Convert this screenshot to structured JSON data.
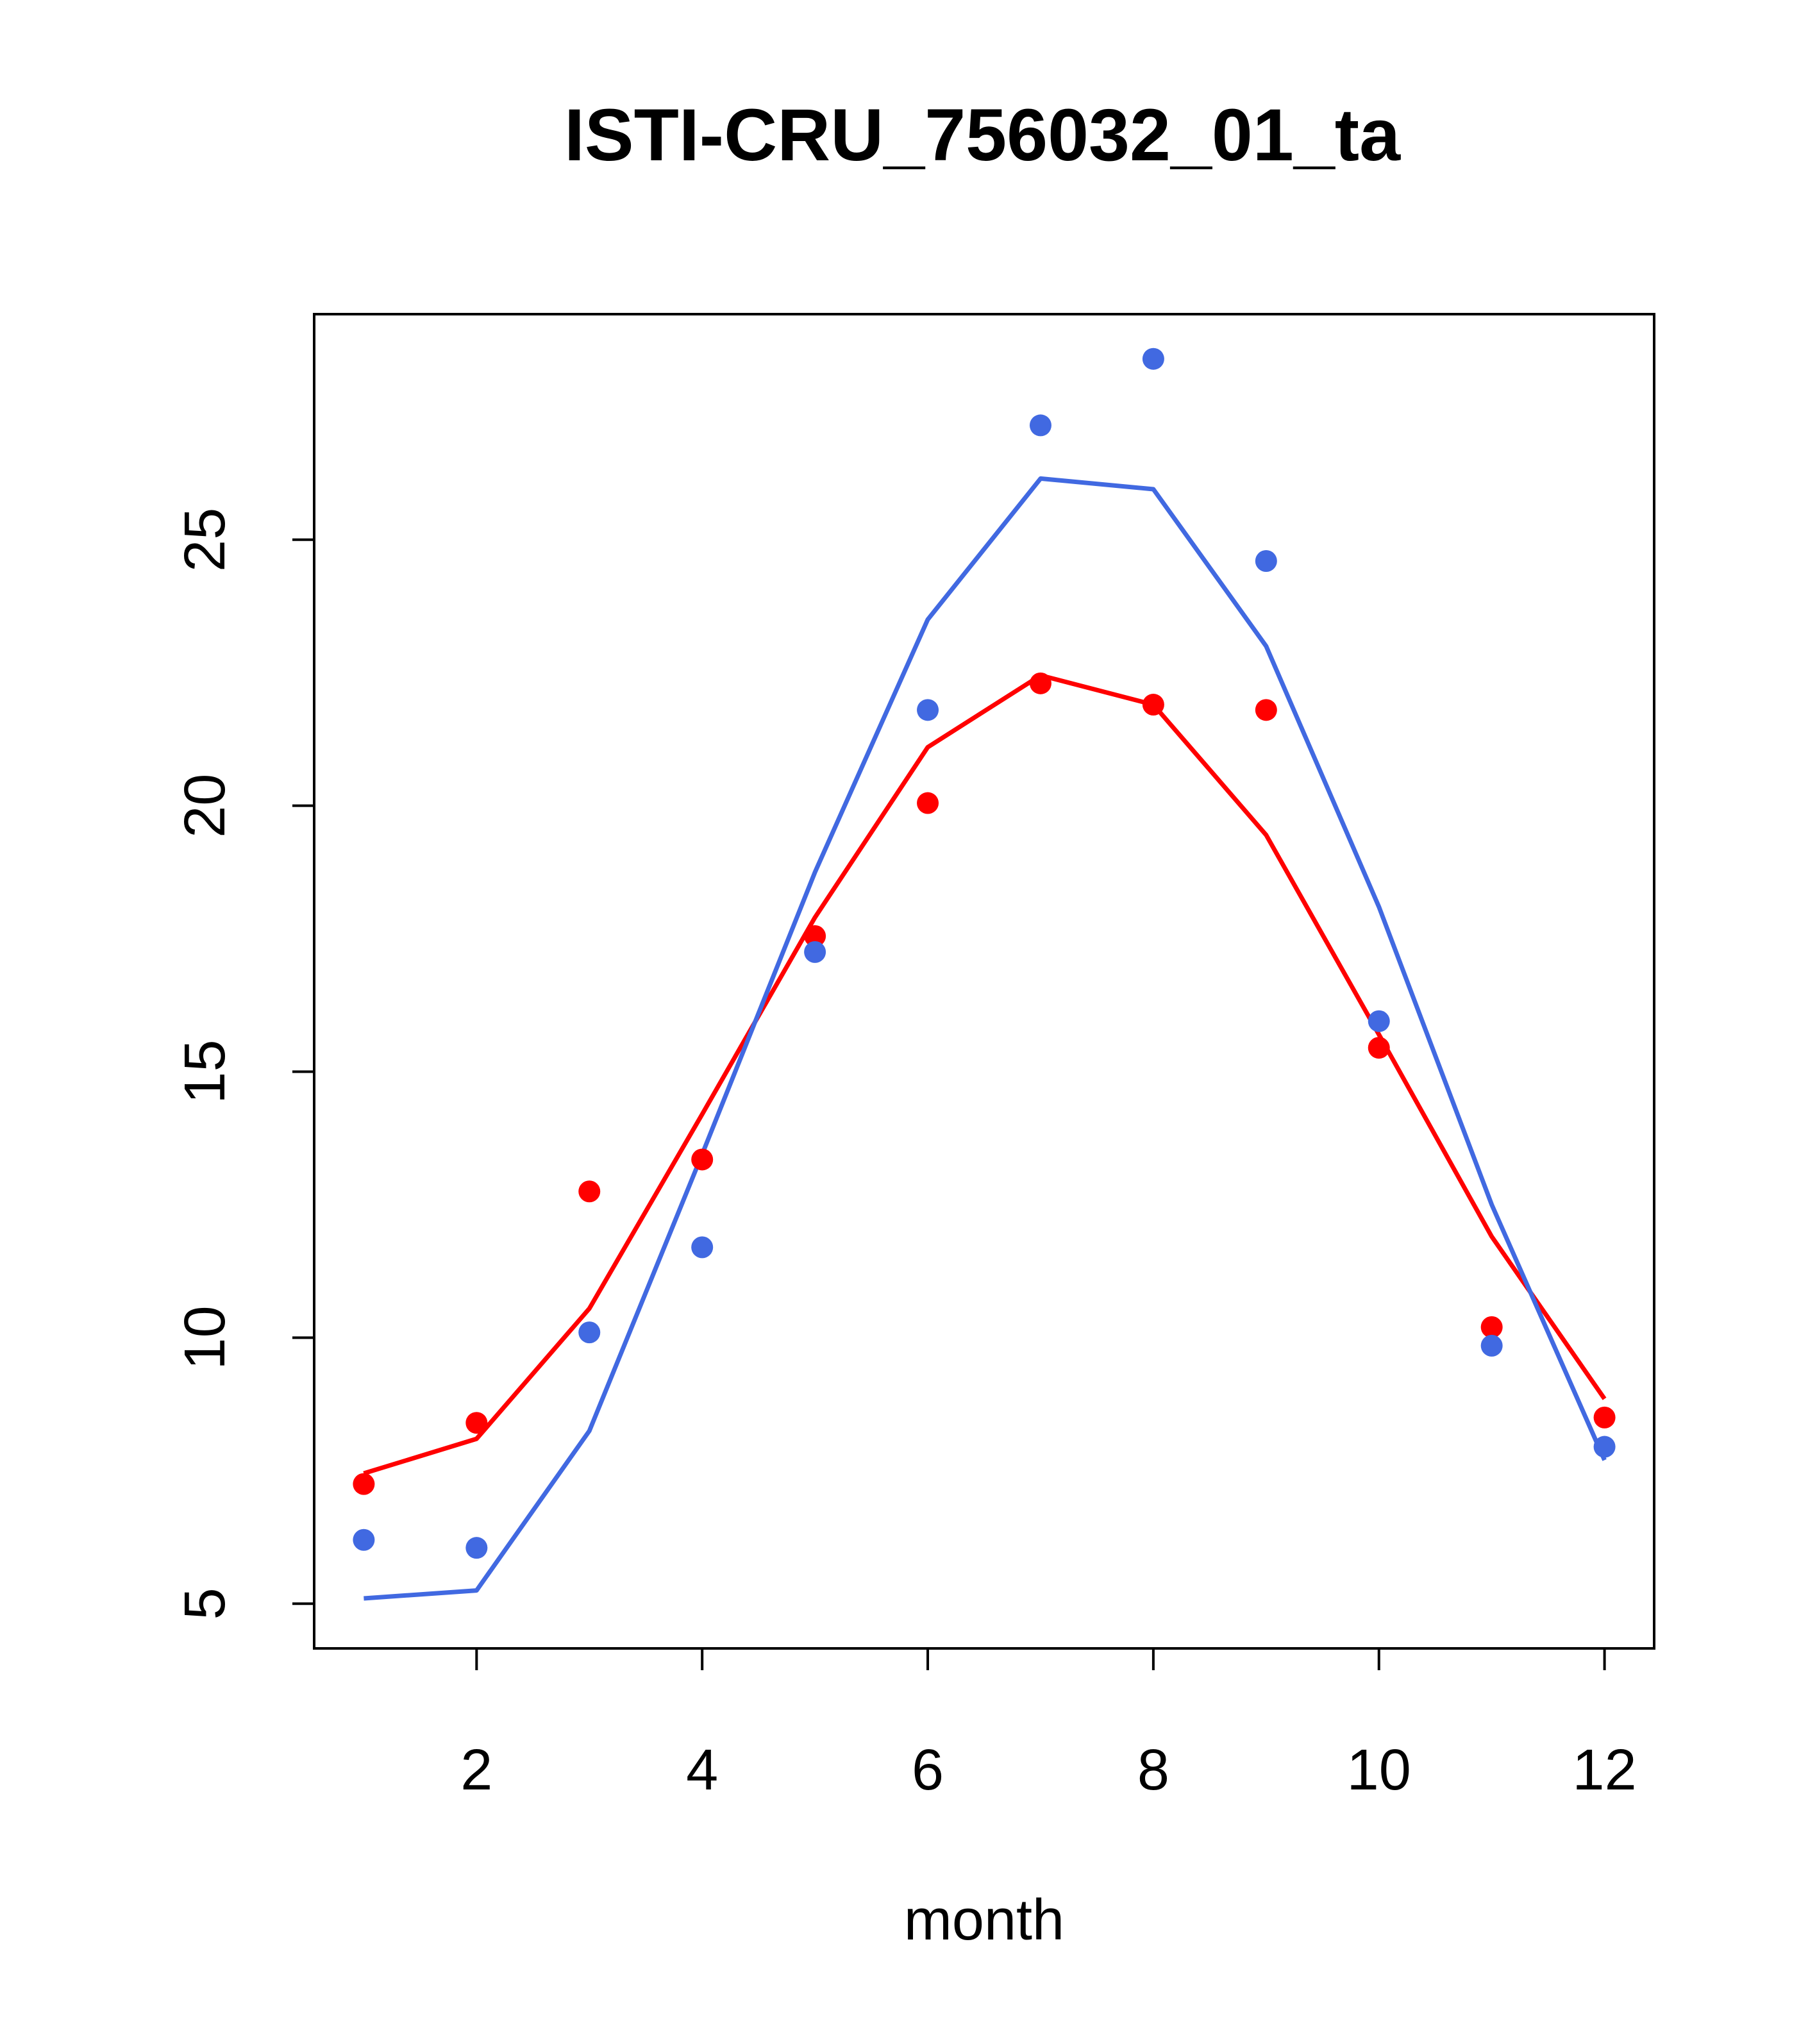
{
  "chart_data": {
    "type": "line",
    "title": "ISTI-CRU_756032_01_ta",
    "xlabel": "month",
    "ylabel": "",
    "xlim": [
      0.56,
      12.44
    ],
    "ylim": [
      4.16,
      29.24
    ],
    "x_ticks": [
      2,
      4,
      6,
      8,
      10,
      12
    ],
    "y_ticks": [
      5,
      10,
      15,
      20,
      25
    ],
    "grid": false,
    "colors": {
      "red": "#ff0000",
      "blue": "#4169e1"
    },
    "x": [
      1,
      2,
      3,
      4,
      5,
      6,
      7,
      8,
      9,
      10,
      11,
      12
    ],
    "series": [
      {
        "color": "#ff0000",
        "points": [
          7.25,
          8.4,
          12.75,
          13.35,
          17.55,
          20.05,
          22.3,
          21.9,
          21.8,
          15.45,
          10.2,
          8.5
        ],
        "line": [
          7.45,
          8.1,
          10.55,
          14.2,
          17.9,
          21.1,
          22.45,
          21.9,
          19.45,
          15.7,
          11.9,
          8.85
        ]
      },
      {
        "color": "#4169e1",
        "points": [
          6.2,
          6.05,
          10.1,
          11.7,
          17.25,
          21.8,
          27.15,
          28.4,
          24.6,
          15.95,
          9.85,
          7.95
        ],
        "line": [
          5.1,
          5.25,
          8.25,
          13.45,
          18.75,
          23.5,
          26.15,
          25.95,
          23.0,
          18.1,
          12.5,
          7.7
        ]
      }
    ]
  }
}
